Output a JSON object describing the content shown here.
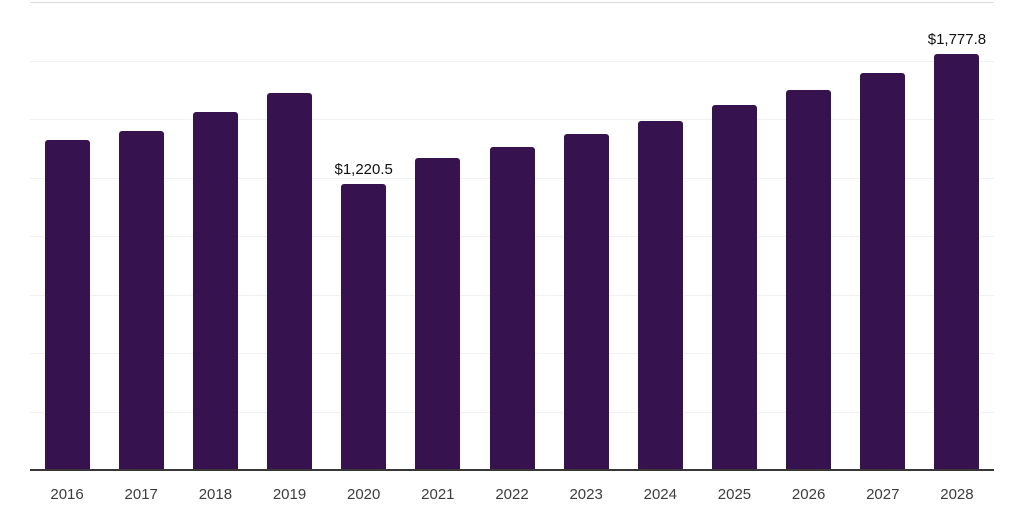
{
  "chart_data": {
    "type": "bar",
    "title": "",
    "xlabel": "",
    "ylabel": "",
    "categories": [
      "2016",
      "2017",
      "2018",
      "2019",
      "2020",
      "2021",
      "2022",
      "2023",
      "2024",
      "2025",
      "2026",
      "2027",
      "2028"
    ],
    "values": [
      1412,
      1450,
      1531,
      1613,
      1220.5,
      1335,
      1382,
      1435,
      1492,
      1560,
      1622,
      1698,
      1777.8
    ],
    "data_labels": {
      "2020": "$1,220.5",
      "2028": "$1,777.8"
    },
    "ylim": [
      0,
      2000
    ],
    "gridline_step": 250,
    "grid": "horizontal gridlines on, no y-axis tick labels",
    "legend_position": "none",
    "bar_color": "#36134F",
    "axis_line_color": "#383838",
    "gridline_color": "#f1f1f1",
    "top_gridline_color": "#dcdcdc",
    "label_color": "#111111",
    "tick_label_color": "#3d3d3d",
    "background_color": "#ffffff"
  }
}
